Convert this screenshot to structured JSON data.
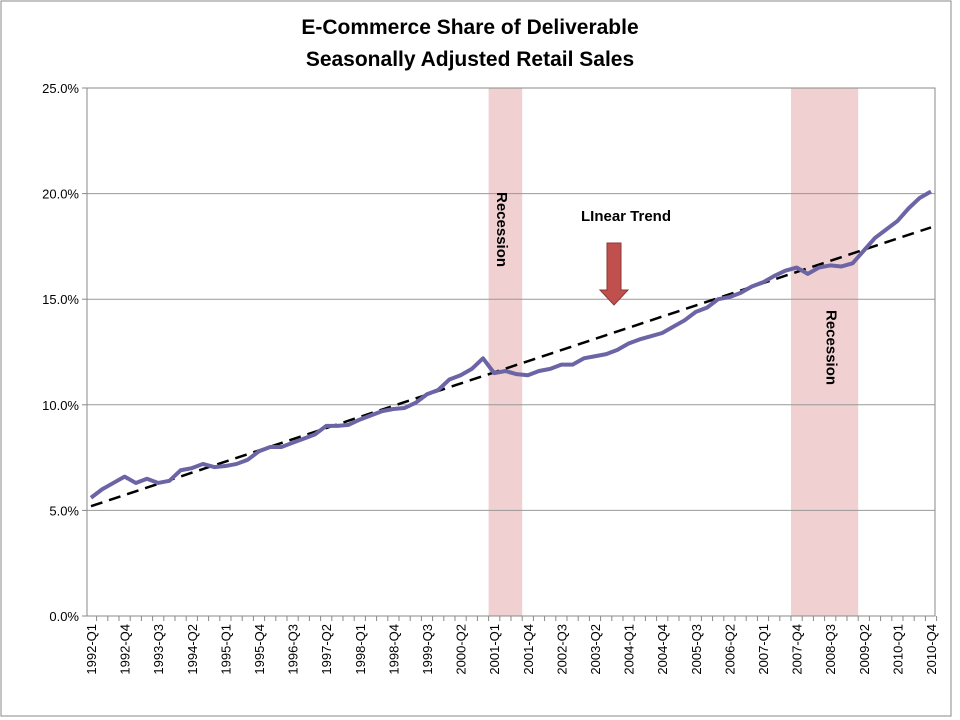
{
  "chart_data": {
    "type": "line",
    "title_lines": [
      "E-Commerce  Share of Deliverable",
      "Seasonally Adjusted Retail Sales"
    ],
    "categories": [
      "1992-Q1",
      null,
      null,
      "1992-Q4",
      null,
      null,
      "1993-Q3",
      null,
      null,
      "1994-Q2",
      null,
      null,
      "1995-Q1",
      null,
      null,
      "1995-Q4",
      null,
      null,
      "1996-Q3",
      null,
      null,
      "1997-Q2",
      null,
      null,
      "1998-Q1",
      null,
      null,
      "1998-Q4",
      null,
      null,
      "1999-Q3",
      null,
      null,
      "2000-Q2",
      null,
      null,
      "2001-Q1",
      null,
      null,
      "2001-Q4",
      null,
      null,
      "2002-Q3",
      null,
      null,
      "2003-Q2",
      null,
      null,
      "2004-Q1",
      null,
      null,
      "2004-Q4",
      null,
      null,
      "2005-Q3",
      null,
      null,
      "2006-Q2",
      null,
      null,
      "2007-Q1",
      null,
      null,
      "2007-Q4",
      null,
      null,
      "2008-Q3",
      null,
      null,
      "2009-Q2",
      null,
      null,
      "2010-Q1",
      null,
      null,
      "2010-Q4"
    ],
    "series": [
      {
        "name": "E-Commerce Share",
        "color": "#6b65a6",
        "values": [
          5.6,
          6.0,
          6.3,
          6.6,
          6.3,
          6.5,
          6.3,
          6.4,
          6.9,
          7.0,
          7.2,
          7.05,
          7.1,
          7.2,
          7.4,
          7.8,
          8.0,
          8.0,
          8.2,
          8.4,
          8.6,
          9.0,
          9.0,
          9.05,
          9.3,
          9.5,
          9.7,
          9.8,
          9.85,
          10.1,
          10.5,
          10.7,
          11.2,
          11.4,
          11.7,
          12.2,
          11.5,
          11.6,
          11.45,
          11.4,
          11.6,
          11.7,
          11.9,
          11.9,
          12.2,
          12.3,
          12.4,
          12.6,
          12.9,
          13.1,
          13.25,
          13.4,
          13.7,
          14.0,
          14.4,
          14.6,
          15.0,
          15.1,
          15.3,
          15.6,
          15.8,
          16.1,
          16.35,
          16.5,
          16.2,
          16.5,
          16.6,
          16.55,
          16.7,
          17.3,
          17.9,
          18.3,
          18.7,
          19.3,
          19.8,
          20.1
        ]
      }
    ],
    "trend": {
      "start": 5.2,
      "end": 18.4,
      "color": "#000000"
    },
    "annotations": [
      {
        "text": "LInear Trend"
      }
    ],
    "recessions": [
      {
        "label": "Recession",
        "from": 36,
        "to": 38
      },
      {
        "label": "Recession",
        "from": 63,
        "to": 68
      }
    ],
    "recession_color": "#f0d0d0",
    "ylim": [
      0,
      25
    ],
    "yticks": [
      {
        "value": 0,
        "label": "0.0%"
      },
      {
        "value": 5,
        "label": "5.0%"
      },
      {
        "value": 10,
        "label": "10.0%"
      },
      {
        "value": 15,
        "label": "15.0%"
      },
      {
        "value": 20,
        "label": "20.0%"
      },
      {
        "value": 25,
        "label": "25.0%"
      }
    ],
    "grid": true
  }
}
